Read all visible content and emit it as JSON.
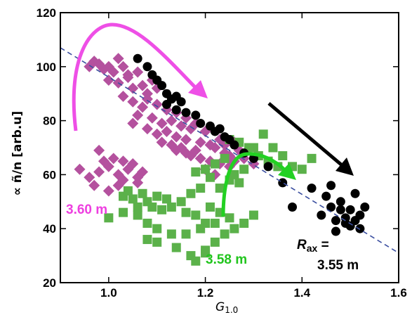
{
  "chart_data": {
    "type": "scatter",
    "title": "",
    "xlabel": "G",
    "xlabel_sub": "1.0",
    "ylabel": "∝ ñ/n [arb.u]",
    "xlim": [
      0.9,
      1.6
    ],
    "ylim": [
      20,
      120
    ],
    "xticks": [
      1.0,
      1.2,
      1.4,
      1.6
    ],
    "xtick_labels": [
      "1.0",
      "1.2",
      "1.4",
      "1.6"
    ],
    "yticks": [
      20,
      40,
      60,
      80,
      100,
      120
    ],
    "ytick_labels": [
      "20",
      "40",
      "60",
      "80",
      "100",
      "120"
    ],
    "grid": false,
    "colors": {
      "magenta": "#b4519e",
      "green": "#5bb14a",
      "black": "#000000",
      "fit_line": "#3b4fa0",
      "arrow_magenta": "#ee4fe6",
      "arrow_green": "#22d122",
      "arrow_black": "#000000",
      "label_magenta": "#ee3fe0",
      "label_green": "#22c51e"
    },
    "series": [
      {
        "marker": "diamond",
        "color": "#b4519e",
        "points": [
          [
            0.96,
            100
          ],
          [
            0.97,
            102
          ],
          [
            0.98,
            101
          ],
          [
            0.99,
            99
          ],
          [
            1.0,
            100
          ],
          [
            1.01,
            98
          ],
          [
            1.02,
            103
          ],
          [
            1.03,
            100
          ],
          [
            1.04,
            97
          ],
          [
            1.0,
            95
          ],
          [
            1.02,
            94
          ],
          [
            1.05,
            92
          ],
          [
            1.04,
            96
          ],
          [
            1.07,
            93
          ],
          [
            1.06,
            98
          ],
          [
            1.08,
            90
          ],
          [
            1.09,
            95
          ],
          [
            1.03,
            89
          ],
          [
            1.05,
            87
          ],
          [
            1.07,
            85
          ],
          [
            1.08,
            88
          ],
          [
            1.1,
            86
          ],
          [
            1.1,
            92
          ],
          [
            1.12,
            84
          ],
          [
            1.13,
            80
          ],
          [
            1.14,
            83
          ],
          [
            1.15,
            78
          ],
          [
            1.11,
            79
          ],
          [
            1.09,
            81
          ],
          [
            1.06,
            82
          ],
          [
            1.05,
            79
          ],
          [
            1.08,
            77
          ],
          [
            1.1,
            75
          ],
          [
            1.12,
            76
          ],
          [
            1.14,
            74
          ],
          [
            1.16,
            73
          ],
          [
            1.17,
            77
          ],
          [
            1.19,
            72
          ],
          [
            1.21,
            71
          ],
          [
            1.23,
            73
          ],
          [
            1.2,
            76
          ],
          [
            1.22,
            70
          ],
          [
            1.24,
            68
          ],
          [
            1.25,
            67
          ],
          [
            1.27,
            69
          ],
          [
            1.26,
            65
          ],
          [
            1.28,
            66
          ],
          [
            1.3,
            64
          ],
          [
            1.18,
            69
          ],
          [
            1.16,
            68
          ],
          [
            1.14,
            69
          ],
          [
            1.13,
            71
          ],
          [
            1.11,
            72
          ],
          [
            1.19,
            66
          ],
          [
            1.21,
            65
          ],
          [
            1.23,
            64
          ],
          [
            1.25,
            63
          ],
          [
            1.2,
            62
          ],
          [
            1.22,
            60
          ],
          [
            1.17,
            67
          ],
          [
            1.15,
            70
          ],
          [
            1.24,
            71
          ],
          [
            1.26,
            72
          ],
          [
            1.18,
            79
          ],
          [
            1.16,
            81
          ],
          [
            0.94,
            62
          ],
          [
            0.96,
            59
          ],
          [
            0.98,
            61
          ],
          [
            1.0,
            63
          ],
          [
            1.01,
            66
          ],
          [
            1.02,
            60
          ],
          [
            1.03,
            58
          ],
          [
            1.04,
            62
          ],
          [
            1.05,
            64
          ],
          [
            1.06,
            59
          ],
          [
            1.07,
            61
          ],
          [
            1.03,
            65
          ],
          [
            0.99,
            65
          ],
          [
            0.97,
            56
          ],
          [
            1.0,
            54
          ],
          [
            1.02,
            56
          ],
          [
            1.06,
            57
          ],
          [
            0.98,
            69
          ]
        ]
      },
      {
        "marker": "square",
        "color": "#5bb14a",
        "points": [
          [
            1.32,
            75
          ],
          [
            1.3,
            70
          ],
          [
            1.34,
            70
          ],
          [
            1.36,
            67
          ],
          [
            1.38,
            63
          ],
          [
            1.4,
            62
          ],
          [
            1.42,
            66
          ],
          [
            1.25,
            73
          ],
          [
            1.27,
            72
          ],
          [
            1.29,
            70
          ],
          [
            1.31,
            67
          ],
          [
            1.33,
            65
          ],
          [
            1.35,
            63
          ],
          [
            1.24,
            66
          ],
          [
            1.22,
            64
          ],
          [
            1.2,
            62
          ],
          [
            1.18,
            61
          ],
          [
            1.25,
            58
          ],
          [
            1.27,
            57
          ],
          [
            1.23,
            55
          ],
          [
            1.26,
            60
          ],
          [
            1.28,
            62
          ],
          [
            1.21,
            59
          ],
          [
            1.19,
            55
          ],
          [
            1.17,
            53
          ],
          [
            1.15,
            50
          ],
          [
            1.12,
            51
          ],
          [
            1.1,
            52
          ],
          [
            1.08,
            50
          ],
          [
            1.06,
            48
          ],
          [
            1.05,
            51
          ],
          [
            1.03,
            52
          ],
          [
            1.04,
            54
          ],
          [
            1.07,
            53
          ],
          [
            1.09,
            48
          ],
          [
            1.11,
            47
          ],
          [
            1.13,
            48
          ],
          [
            1.16,
            46
          ],
          [
            1.18,
            45
          ],
          [
            1.2,
            42
          ],
          [
            1.22,
            42
          ],
          [
            1.19,
            40
          ],
          [
            1.16,
            38
          ],
          [
            1.13,
            38
          ],
          [
            1.1,
            40
          ],
          [
            1.08,
            42
          ],
          [
            1.08,
            36
          ],
          [
            1.1,
            35
          ],
          [
            1.14,
            33
          ],
          [
            1.17,
            30
          ],
          [
            1.2,
            31
          ],
          [
            1.22,
            35
          ],
          [
            1.24,
            38
          ],
          [
            1.26,
            40
          ],
          [
            1.28,
            42
          ],
          [
            1.3,
            45
          ],
          [
            1.25,
            44
          ],
          [
            1.23,
            46
          ],
          [
            1.21,
            48
          ],
          [
            1.03,
            46
          ],
          [
            1.0,
            44
          ],
          [
            1.06,
            45
          ],
          [
            1.2,
            32
          ],
          [
            1.18,
            28
          ]
        ]
      },
      {
        "marker": "circle",
        "color": "#000000",
        "points": [
          [
            1.06,
            103
          ],
          [
            1.08,
            100
          ],
          [
            1.09,
            97
          ],
          [
            1.1,
            95
          ],
          [
            1.11,
            93
          ],
          [
            1.12,
            90
          ],
          [
            1.13,
            88
          ],
          [
            1.14,
            89
          ],
          [
            1.15,
            87
          ],
          [
            1.12,
            86
          ],
          [
            1.14,
            84
          ],
          [
            1.16,
            83
          ],
          [
            1.18,
            82
          ],
          [
            1.21,
            78
          ],
          [
            1.22,
            76
          ],
          [
            1.24,
            74
          ],
          [
            1.26,
            71
          ],
          [
            1.28,
            68
          ],
          [
            1.3,
            66
          ],
          [
            1.19,
            79
          ],
          [
            1.25,
            73
          ],
          [
            1.23,
            77
          ],
          [
            1.33,
            63
          ],
          [
            1.36,
            57
          ],
          [
            1.38,
            48
          ],
          [
            1.42,
            55
          ],
          [
            1.44,
            45
          ],
          [
            1.45,
            52
          ],
          [
            1.46,
            48
          ],
          [
            1.46,
            56
          ],
          [
            1.47,
            43
          ],
          [
            1.48,
            47
          ],
          [
            1.48,
            50
          ],
          [
            1.49,
            44
          ],
          [
            1.5,
            47
          ],
          [
            1.5,
            41
          ],
          [
            1.51,
            43
          ],
          [
            1.51,
            53
          ],
          [
            1.52,
            40
          ],
          [
            1.53,
            48
          ],
          [
            1.47,
            39
          ],
          [
            1.49,
            42
          ],
          [
            1.52,
            45
          ]
        ]
      }
    ],
    "fit_line": {
      "from": [
        0.9,
        107
      ],
      "to": [
        1.6,
        31
      ],
      "style": "dashed"
    },
    "annotations": {
      "magenta_label": "3.60 m",
      "green_label": "3.58 m",
      "black_label_r": "R",
      "black_label_sub": "ax",
      "black_label_eq": " =",
      "black_label_value": "3.55 m"
    }
  }
}
